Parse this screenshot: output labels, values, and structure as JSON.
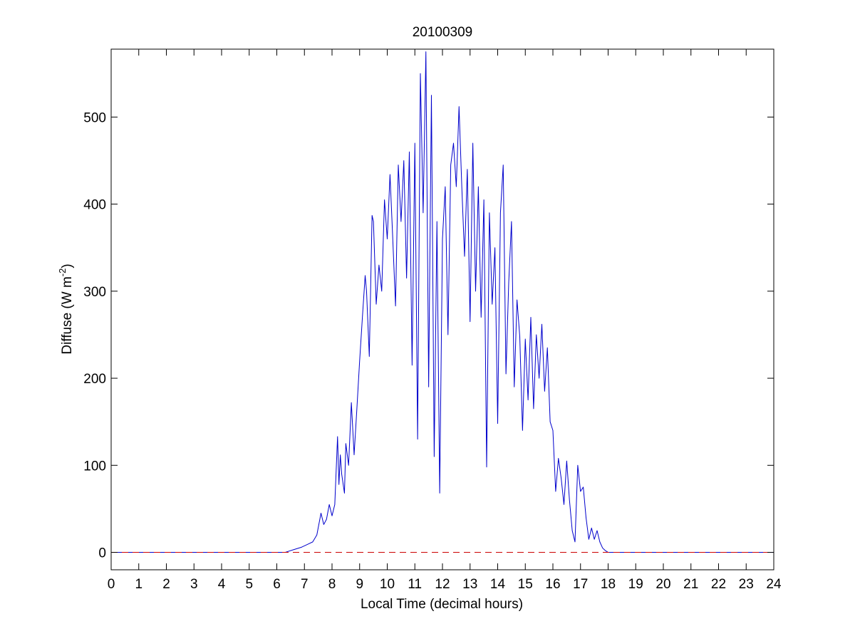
{
  "chart_data": {
    "type": "line",
    "title": "20100309",
    "xlabel": "Local Time (decimal hours)",
    "ylabel": {
      "prefix": "Diffuse (W m",
      "superscript": "-2",
      "suffix": ")"
    },
    "xlim": [
      0,
      24
    ],
    "ylim": [
      -20,
      578
    ],
    "xticks": [
      0,
      1,
      2,
      3,
      4,
      5,
      6,
      7,
      8,
      9,
      10,
      11,
      12,
      13,
      14,
      15,
      16,
      17,
      18,
      19,
      20,
      21,
      22,
      23,
      24
    ],
    "yticks": [
      0,
      100,
      200,
      300,
      400,
      500
    ],
    "grid": false,
    "series": [
      {
        "color": "#0000cc",
        "style": "solid",
        "x": [
          0,
          6.3,
          6.6,
          6.9,
          7.1,
          7.3,
          7.45,
          7.6,
          7.7,
          7.8,
          7.9,
          8.0,
          8.1,
          8.2,
          8.25,
          8.3,
          8.35,
          8.45,
          8.5,
          8.6,
          8.7,
          8.8,
          8.9,
          9.0,
          9.1,
          9.2,
          9.25,
          9.35,
          9.45,
          9.5,
          9.6,
          9.7,
          9.8,
          9.9,
          10.0,
          10.1,
          10.2,
          10.3,
          10.4,
          10.5,
          10.6,
          10.7,
          10.8,
          10.9,
          11.0,
          11.1,
          11.2,
          11.3,
          11.4,
          11.5,
          11.6,
          11.7,
          11.8,
          11.9,
          12.0,
          12.1,
          12.2,
          12.3,
          12.4,
          12.5,
          12.6,
          12.7,
          12.8,
          12.9,
          13.0,
          13.1,
          13.2,
          13.3,
          13.4,
          13.5,
          13.6,
          13.7,
          13.8,
          13.9,
          14.0,
          14.1,
          14.2,
          14.3,
          14.4,
          14.5,
          14.6,
          14.7,
          14.8,
          14.9,
          15.0,
          15.1,
          15.2,
          15.3,
          15.4,
          15.5,
          15.6,
          15.7,
          15.8,
          15.9,
          16.0,
          16.1,
          16.2,
          16.3,
          16.4,
          16.5,
          16.6,
          16.7,
          16.8,
          16.9,
          17.0,
          17.1,
          17.2,
          17.3,
          17.4,
          17.5,
          17.6,
          17.7,
          17.8,
          17.9,
          18.0,
          18.1,
          18.3,
          24
        ],
        "y": [
          0,
          0,
          3,
          6,
          9,
          12,
          20,
          45,
          32,
          38,
          55,
          42,
          55,
          133,
          78,
          112,
          90,
          68,
          125,
          100,
          172,
          112,
          165,
          220,
          270,
          318,
          300,
          225,
          387,
          380,
          285,
          330,
          300,
          405,
          360,
          434,
          360,
          283,
          445,
          380,
          450,
          315,
          460,
          215,
          470,
          130,
          550,
          390,
          575,
          190,
          525,
          110,
          380,
          68,
          360,
          420,
          250,
          445,
          470,
          420,
          512,
          420,
          340,
          440,
          265,
          470,
          300,
          420,
          270,
          405,
          98,
          390,
          285,
          350,
          148,
          390,
          445,
          205,
          310,
          380,
          190,
          290,
          248,
          140,
          245,
          175,
          270,
          165,
          250,
          200,
          262,
          185,
          235,
          150,
          140,
          70,
          108,
          85,
          55,
          105,
          60,
          25,
          12,
          100,
          70,
          75,
          40,
          15,
          28,
          15,
          25,
          12,
          5,
          2,
          0,
          0,
          0,
          0
        ]
      },
      {
        "color": "#cc0000",
        "style": "dashed",
        "x": [
          0,
          24
        ],
        "y": [
          0,
          0
        ]
      }
    ]
  }
}
